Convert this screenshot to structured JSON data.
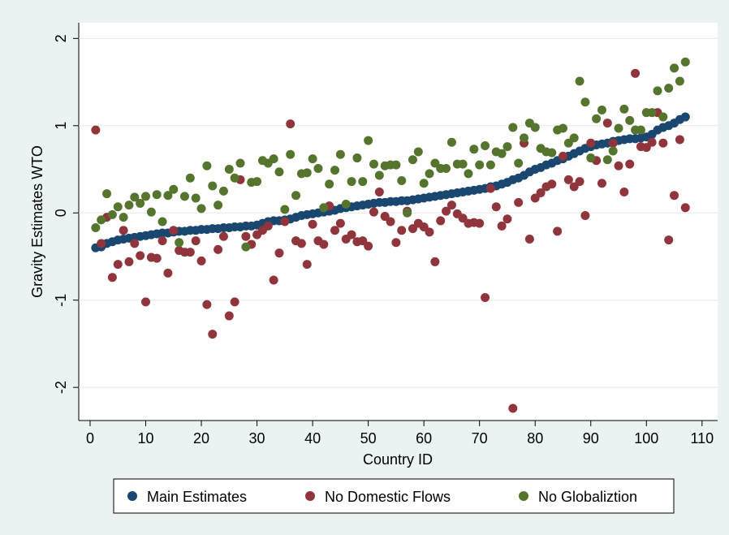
{
  "chart_data": {
    "type": "scatter",
    "x_label": "Country ID",
    "y_label": "Gravity Estimates WTO",
    "x": [
      1,
      2,
      3,
      4,
      5,
      6,
      7,
      8,
      9,
      10,
      11,
      12,
      13,
      14,
      15,
      16,
      17,
      18,
      19,
      20,
      21,
      22,
      23,
      24,
      25,
      26,
      27,
      28,
      29,
      30,
      31,
      32,
      33,
      34,
      35,
      36,
      37,
      38,
      39,
      40,
      41,
      42,
      43,
      44,
      45,
      46,
      47,
      48,
      49,
      50,
      51,
      52,
      53,
      54,
      55,
      56,
      57,
      58,
      59,
      60,
      61,
      62,
      63,
      64,
      65,
      66,
      67,
      68,
      69,
      70,
      71,
      72,
      73,
      74,
      75,
      76,
      77,
      78,
      79,
      80,
      81,
      82,
      83,
      84,
      85,
      86,
      87,
      88,
      89,
      90,
      91,
      92,
      93,
      94,
      95,
      96,
      97,
      98,
      99,
      100,
      101,
      102,
      103,
      104,
      105,
      106,
      107
    ],
    "series": [
      {
        "name": "Main Estimates",
        "color": "#1a476f",
        "values": [
          -0.4,
          -0.39,
          -0.35,
          -0.33,
          -0.31,
          -0.3,
          -0.29,
          -0.28,
          -0.27,
          -0.26,
          -0.25,
          -0.24,
          -0.23,
          -0.23,
          -0.22,
          -0.21,
          -0.21,
          -0.2,
          -0.2,
          -0.19,
          -0.19,
          -0.18,
          -0.18,
          -0.17,
          -0.17,
          -0.16,
          -0.16,
          -0.15,
          -0.15,
          -0.14,
          -0.12,
          -0.1,
          -0.09,
          -0.09,
          -0.08,
          -0.07,
          -0.05,
          -0.03,
          -0.02,
          -0.01,
          0.0,
          0.01,
          0.02,
          0.03,
          0.05,
          0.06,
          0.07,
          0.08,
          0.09,
          0.1,
          0.11,
          0.12,
          0.12,
          0.13,
          0.13,
          0.14,
          0.14,
          0.15,
          0.16,
          0.17,
          0.18,
          0.19,
          0.2,
          0.21,
          0.22,
          0.23,
          0.24,
          0.25,
          0.26,
          0.27,
          0.28,
          0.3,
          0.31,
          0.33,
          0.35,
          0.38,
          0.4,
          0.43,
          0.47,
          0.5,
          0.52,
          0.55,
          0.57,
          0.6,
          0.62,
          0.65,
          0.68,
          0.71,
          0.74,
          0.76,
          0.78,
          0.79,
          0.8,
          0.82,
          0.83,
          0.84,
          0.85,
          0.85,
          0.86,
          0.87,
          0.9,
          0.95,
          0.98,
          1.0,
          1.03,
          1.07,
          1.1
        ]
      },
      {
        "name": "No Domestic Flows",
        "color": "#90353b",
        "values": [
          0.95,
          -0.35,
          -0.05,
          -0.74,
          -0.59,
          -0.2,
          -0.56,
          -0.35,
          -0.49,
          -1.02,
          -0.51,
          -0.52,
          -0.32,
          -0.69,
          -0.2,
          -0.43,
          -0.45,
          -0.45,
          -0.32,
          -0.55,
          -1.05,
          -1.39,
          -0.42,
          -0.27,
          -1.18,
          -1.02,
          0.38,
          -0.27,
          -0.36,
          -0.25,
          -0.2,
          -0.15,
          -0.77,
          -0.46,
          -0.1,
          1.02,
          -0.32,
          -0.35,
          -0.59,
          -0.13,
          -0.32,
          -0.36,
          0.08,
          -0.2,
          -0.12,
          -0.3,
          -0.25,
          -0.33,
          -0.32,
          -0.38,
          0.01,
          0.24,
          -0.04,
          -0.1,
          -0.34,
          -0.2,
          0.02,
          -0.18,
          -0.12,
          -0.16,
          -0.22,
          -0.56,
          -0.09,
          0.02,
          0.09,
          -0.01,
          -0.06,
          -0.12,
          -0.11,
          -0.12,
          -0.97,
          0.28,
          0.07,
          -0.15,
          -0.07,
          -2.24,
          0.12,
          0.8,
          -0.3,
          0.17,
          0.23,
          0.3,
          0.33,
          -0.21,
          0.65,
          0.38,
          0.3,
          0.36,
          -0.03,
          0.8,
          0.6,
          0.34,
          1.03,
          0.8,
          0.54,
          0.24,
          0.56,
          1.6,
          0.76,
          0.75,
          0.81,
          1.15,
          0.8,
          -0.31,
          0.2,
          0.84,
          0.06
        ]
      },
      {
        "name": "No Globaliztion",
        "color": "#55752f",
        "values": [
          -0.17,
          -0.08,
          0.22,
          -0.02,
          0.07,
          -0.05,
          0.09,
          0.18,
          0.11,
          0.19,
          0.01,
          0.21,
          -0.1,
          0.2,
          0.27,
          -0.34,
          0.19,
          0.4,
          0.17,
          0.05,
          0.54,
          0.31,
          0.09,
          0.25,
          0.5,
          0.4,
          0.57,
          -0.39,
          0.35,
          0.36,
          0.6,
          0.57,
          0.62,
          0.47,
          0.04,
          0.67,
          0.2,
          0.45,
          0.46,
          0.62,
          0.51,
          0.06,
          0.33,
          0.49,
          0.67,
          0.1,
          0.36,
          0.63,
          0.36,
          0.83,
          0.56,
          0.43,
          0.54,
          0.55,
          0.55,
          0.37,
          0.0,
          0.61,
          0.7,
          0.34,
          0.45,
          0.57,
          0.51,
          0.51,
          0.81,
          0.56,
          0.56,
          0.45,
          0.73,
          0.55,
          0.77,
          0.55,
          0.7,
          0.68,
          0.76,
          0.98,
          0.57,
          0.86,
          1.03,
          0.98,
          0.74,
          0.7,
          0.69,
          0.95,
          0.97,
          0.8,
          0.86,
          1.51,
          1.27,
          0.63,
          1.08,
          1.18,
          0.61,
          0.71,
          0.97,
          1.19,
          1.06,
          0.95,
          0.95,
          1.15,
          1.15,
          1.4,
          1.1,
          1.43,
          1.66,
          1.51,
          1.73
        ]
      }
    ],
    "xlim": [
      -2.04,
      112.8
    ],
    "ylim": [
      -2.38,
      2.18
    ],
    "xticks": [
      0,
      10,
      20,
      30,
      40,
      50,
      60,
      70,
      80,
      90,
      100,
      110
    ],
    "yticks": [
      -2,
      -1,
      0,
      1,
      2
    ],
    "grid": true,
    "legend": "bottom"
  }
}
